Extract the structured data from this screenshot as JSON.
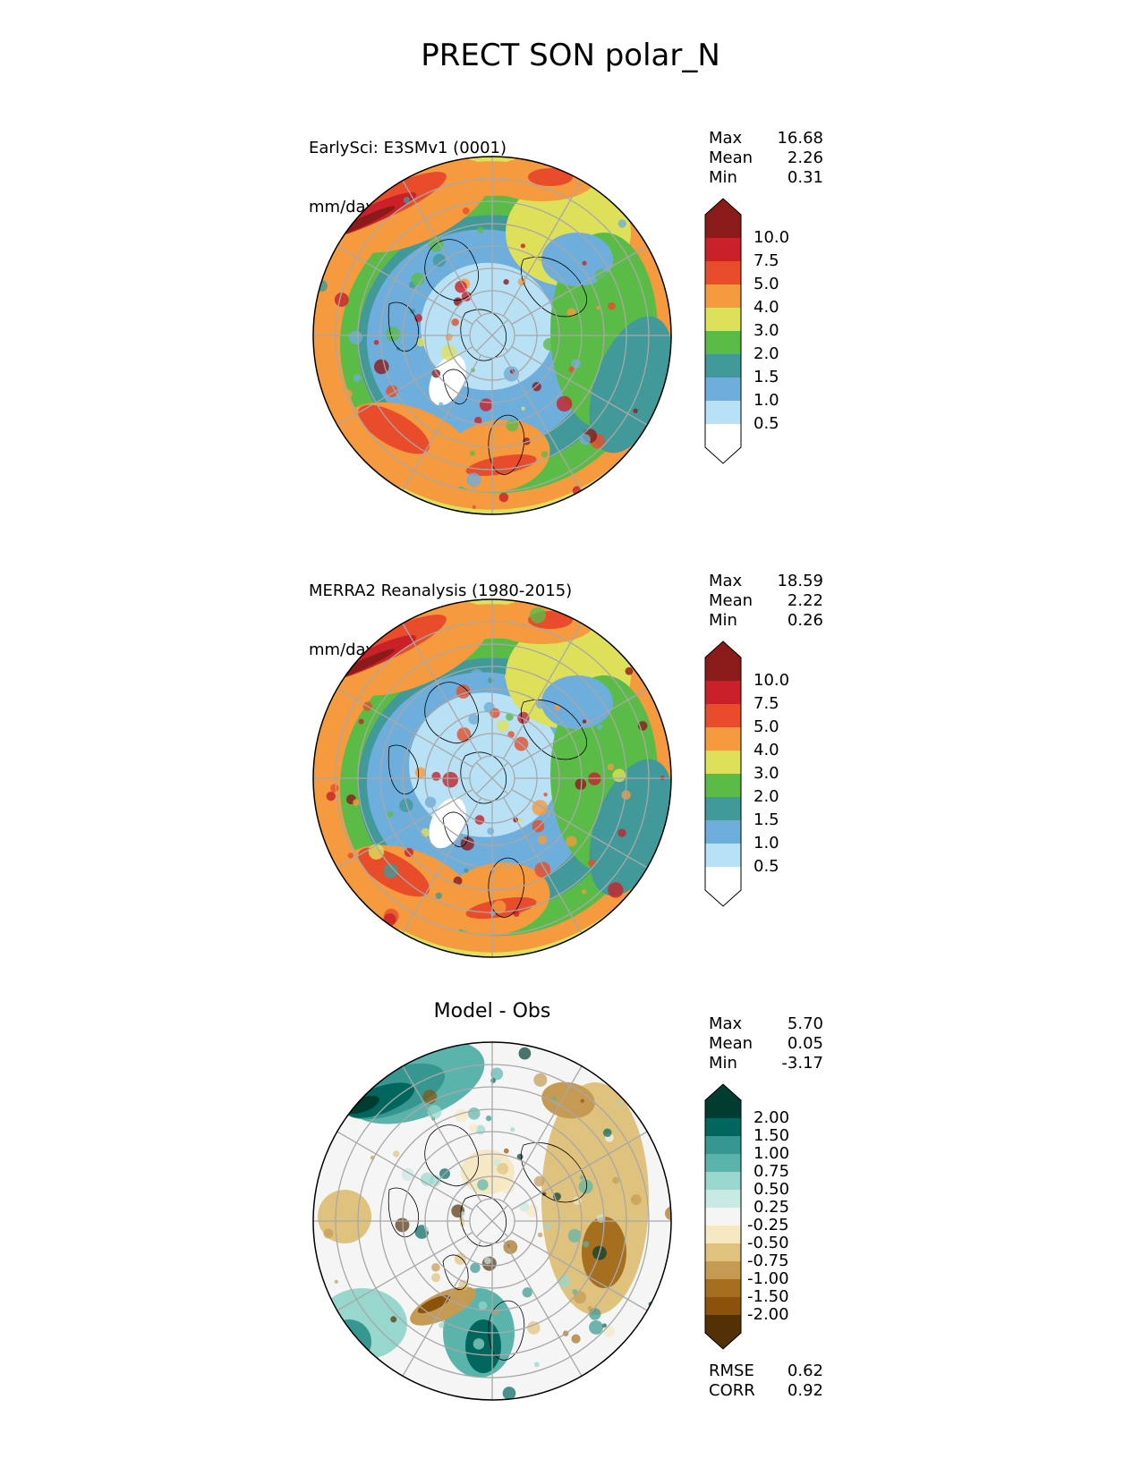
{
  "title": "PRECT SON polar_N",
  "panels": [
    {
      "id": "test",
      "title": "EarlySci: E3SMv1 (0001)",
      "units": "mm/day",
      "stats": [
        {
          "label": "Max",
          "value": "16.68"
        },
        {
          "label": "Mean",
          "value": "2.26"
        },
        {
          "label": "Min",
          "value": "0.31"
        }
      ]
    },
    {
      "id": "reference",
      "title": "MERRA2 Reanalysis (1980-2015)",
      "units": "mm/day",
      "stats": [
        {
          "label": "Max",
          "value": "18.59"
        },
        {
          "label": "Mean",
          "value": "2.22"
        },
        {
          "label": "Min",
          "value": "0.26"
        }
      ]
    },
    {
      "id": "difference",
      "title": "Model - Obs",
      "stats": [
        {
          "label": "Max",
          "value": "5.70"
        },
        {
          "label": "Mean",
          "value": "0.05"
        },
        {
          "label": "Min",
          "value": "-3.17"
        }
      ],
      "metrics": [
        {
          "label": "RMSE",
          "value": "0.62"
        },
        {
          "label": "CORR",
          "value": "0.92"
        }
      ]
    }
  ],
  "colorbars": {
    "precip": {
      "levels": [
        "10.0",
        "7.5",
        "5.0",
        "4.0",
        "3.0",
        "2.0",
        "1.5",
        "1.0",
        "0.5"
      ],
      "colors": [
        "#8b1a1a",
        "#c9202a",
        "#e84c2b",
        "#f59a3e",
        "#dfe05a",
        "#5bbb47",
        "#41999a",
        "#6eaedc",
        "#b8e1f5",
        "#ffffff"
      ]
    },
    "diff": {
      "levels": [
        "2.00",
        "1.50",
        "1.00",
        "0.75",
        "0.50",
        "0.25",
        "-0.25",
        "-0.50",
        "-0.75",
        "-1.00",
        "-1.50",
        "-2.00"
      ],
      "colors": [
        "#003c30",
        "#01665e",
        "#35978f",
        "#5ab4ac",
        "#97d7cd",
        "#c7eae5",
        "#f5f5f5",
        "#f6e8c3",
        "#dfc27d",
        "#c59a52",
        "#a66f1f",
        "#8c510a",
        "#543005"
      ]
    }
  }
}
